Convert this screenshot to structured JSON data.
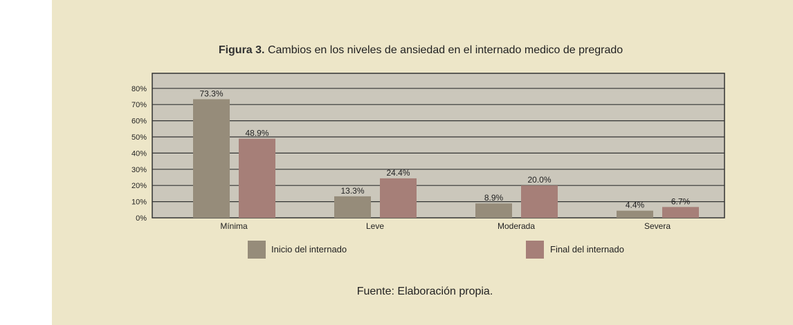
{
  "chart_data": {
    "type": "bar",
    "title_prefix": "Figura 3.",
    "title": "Cambios en los niveles de ansiedad en el internado medico de pregrado",
    "categories": [
      "Mínima",
      "Leve",
      "Moderada",
      "Severa"
    ],
    "series": [
      {
        "name": "Inicio del internado",
        "color": "#968c7a",
        "values": [
          73.3,
          13.3,
          8.9,
          4.4
        ],
        "labels": [
          "73.3%",
          "13.3%",
          "8.9%",
          "4.4%"
        ]
      },
      {
        "name": "Final del internado",
        "color": "#a67f78",
        "values": [
          48.9,
          24.4,
          20.0,
          6.7
        ],
        "labels": [
          "48.9%",
          "24.4%",
          "20.0%",
          "6.7%"
        ]
      }
    ],
    "yticks": [
      "0%",
      "10%",
      "20%",
      "30%",
      "40%",
      "50%",
      "60%",
      "70%",
      "80%"
    ],
    "ylim": [
      0,
      90
    ],
    "grid": true,
    "legend_position": "bottom",
    "xlabel": "",
    "ylabel": ""
  },
  "source": "Fuente: Elaboración propia."
}
